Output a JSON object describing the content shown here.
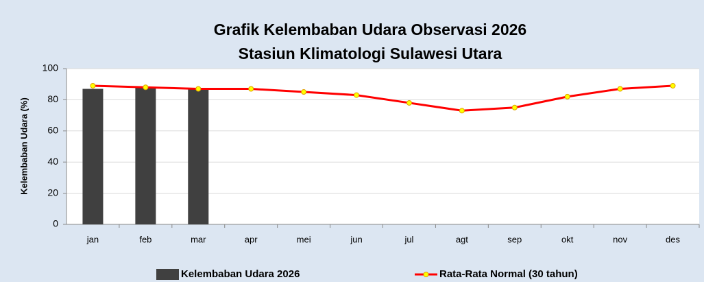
{
  "chart_data": {
    "type": "bar-line",
    "title": [
      "Grafik Kelembaban Udara Observasi 2026",
      "Stasiun Klimatologi Sulawesi Utara"
    ],
    "y_label": "Kelembaban Udara (%)",
    "categories": [
      "jan",
      "feb",
      "mar",
      "apr",
      "mei",
      "jun",
      "jul",
      "agt",
      "sep",
      "okt",
      "nov",
      "des"
    ],
    "series": [
      {
        "name": "Kelembaban Udara 2026",
        "type": "bar",
        "color": "#404040",
        "values": [
          87,
          88,
          87,
          null,
          null,
          null,
          null,
          null,
          null,
          null,
          null,
          null
        ]
      },
      {
        "name": "Rata-Rata Normal (30 tahun)",
        "type": "line",
        "color": "#ff0000",
        "marker_color": "#ffff00",
        "values": [
          89,
          88,
          87,
          87,
          85,
          83,
          78,
          73,
          75,
          82,
          87,
          89
        ]
      }
    ],
    "ylim": [
      0,
      100
    ],
    "yticks": [
      0,
      20,
      40,
      60,
      80,
      100
    ],
    "grid": true,
    "legend": "bottom"
  }
}
